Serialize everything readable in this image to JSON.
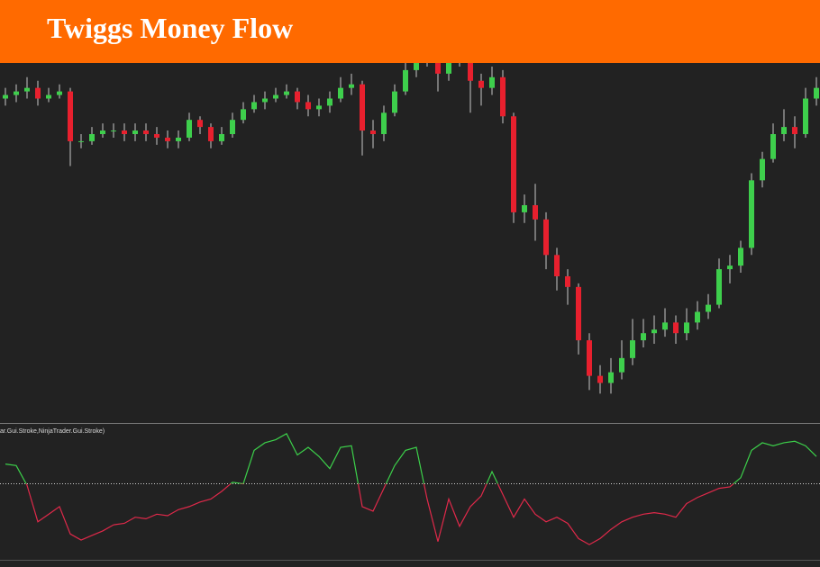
{
  "header": {
    "title": "Twiggs Money Flow"
  },
  "chart_data": [
    {
      "type": "candlestick",
      "ylim": [
        0,
        100
      ],
      "up_color": "#3ecf4c",
      "down_color": "#e8202e",
      "wick_color": "#c8c8c8",
      "series": {
        "open": [
          90,
          91,
          92,
          93,
          90,
          91,
          92,
          78,
          78,
          80,
          81,
          81,
          80,
          81,
          80,
          79,
          78,
          79,
          84,
          82,
          78,
          80,
          84,
          87,
          89,
          90,
          91,
          92,
          89,
          87,
          88,
          90,
          93,
          94,
          81,
          80,
          86,
          92,
          98,
          101,
          103,
          97,
          101,
          102,
          95,
          93,
          96,
          85,
          58,
          60,
          56,
          46,
          40,
          37,
          22,
          12,
          10,
          13,
          17,
          22,
          24,
          25,
          27,
          24,
          27,
          30,
          32,
          42,
          43,
          48,
          67,
          73,
          80,
          82,
          80,
          90
        ],
        "high": [
          93,
          94,
          96,
          95,
          93,
          94,
          93,
          80,
          82,
          83,
          83,
          83,
          83,
          83,
          82,
          81,
          81,
          86,
          85,
          83,
          82,
          86,
          89,
          91,
          92,
          93,
          94,
          93,
          91,
          90,
          92,
          96,
          97,
          95,
          84,
          88,
          94,
          101,
          105,
          106,
          104,
          103,
          105,
          103,
          97,
          99,
          98,
          86,
          63,
          66,
          58,
          48,
          42,
          38,
          24,
          15,
          17,
          22,
          28,
          28,
          29,
          31,
          29,
          31,
          33,
          35,
          45,
          46,
          50,
          69,
          75,
          83,
          87,
          85,
          93,
          96
        ],
        "low": [
          88,
          89,
          90,
          88,
          89,
          90,
          71,
          76,
          77,
          79,
          79,
          78,
          78,
          78,
          77,
          76,
          76,
          78,
          80,
          76,
          77,
          79,
          83,
          86,
          87,
          89,
          90,
          87,
          85,
          85,
          86,
          89,
          91,
          74,
          76,
          78,
          85,
          91,
          96,
          99,
          92,
          95,
          99,
          86,
          88,
          91,
          83,
          55,
          55,
          50,
          42,
          36,
          32,
          18,
          8,
          7,
          7,
          11,
          15,
          20,
          21,
          23,
          21,
          22,
          25,
          28,
          31,
          38,
          41,
          46,
          65,
          72,
          78,
          76,
          79,
          88
        ],
        "close": [
          91,
          92,
          93,
          90,
          91,
          92,
          78,
          78,
          80,
          81,
          81,
          80,
          81,
          80,
          79,
          78,
          79,
          84,
          82,
          78,
          80,
          84,
          87,
          89,
          90,
          91,
          92,
          89,
          87,
          88,
          90,
          93,
          94,
          81,
          80,
          86,
          92,
          98,
          101,
          103,
          97,
          101,
          102,
          95,
          93,
          96,
          85,
          58,
          60,
          56,
          46,
          40,
          37,
          22,
          12,
          10,
          13,
          17,
          22,
          24,
          25,
          27,
          24,
          27,
          30,
          32,
          42,
          43,
          48,
          67,
          73,
          80,
          82,
          80,
          90,
          93
        ]
      }
    },
    {
      "type": "line",
      "label": "ar.Gui.Stroke,NinjaTrader.Gui.Stroke)",
      "ylim": [
        -0.5,
        0.4
      ],
      "hline": 0,
      "series": [
        {
          "color": "#e0294a",
          "positive_color": "#3cd04a",
          "values": [
            0.13,
            0.12,
            -0.01,
            -0.25,
            -0.2,
            -0.15,
            -0.33,
            -0.37,
            -0.34,
            -0.31,
            -0.27,
            -0.26,
            -0.22,
            -0.23,
            -0.2,
            -0.21,
            -0.17,
            -0.15,
            -0.12,
            -0.1,
            -0.05,
            0.01,
            0.0,
            0.22,
            0.27,
            0.29,
            0.33,
            0.19,
            0.24,
            0.18,
            0.1,
            0.24,
            0.25,
            -0.15,
            -0.18,
            -0.03,
            0.12,
            0.22,
            0.24,
            -0.1,
            -0.38,
            -0.1,
            -0.28,
            -0.15,
            -0.08,
            0.08,
            -0.07,
            -0.22,
            -0.1,
            -0.2,
            -0.25,
            -0.22,
            -0.26,
            -0.36,
            -0.4,
            -0.36,
            -0.3,
            -0.25,
            -0.22,
            -0.2,
            -0.19,
            -0.2,
            -0.22,
            -0.13,
            -0.09,
            -0.06,
            -0.03,
            -0.02,
            0.04,
            0.22,
            0.27,
            0.25,
            0.27,
            0.28,
            0.25,
            0.18
          ]
        }
      ]
    }
  ]
}
